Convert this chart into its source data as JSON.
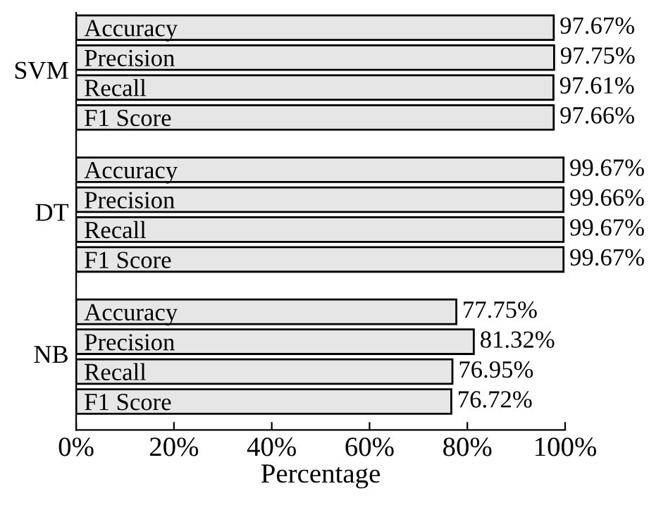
{
  "chart_data": {
    "type": "bar",
    "orientation": "horizontal",
    "xlabel": "Percentage",
    "categories": [
      "Accuracy",
      "Precision",
      "Recall",
      "F1 Score",
      "Accuracy",
      "Precision",
      "Recall",
      "F1 Score",
      "Accuracy",
      "Precision",
      "Recall",
      "F1 Score"
    ],
    "values": [
      97.67,
      97.75,
      97.61,
      97.66,
      99.67,
      99.66,
      99.67,
      99.67,
      77.75,
      81.32,
      76.95,
      76.72
    ],
    "value_labels": [
      "97.67%",
      "97.75%",
      "97.61%",
      "97.66%",
      "99.67%",
      "99.66%",
      "99.67%",
      "99.67%",
      "77.75%",
      "81.32%",
      "76.95%",
      "76.72%"
    ],
    "color": "#e6e6e6",
    "annotations": [
      "SVM",
      "DT",
      "NB"
    ],
    "xlim": [
      0,
      100
    ],
    "xticks": [
      {
        "value": 0,
        "label": "0%"
      },
      {
        "value": 20,
        "label": "20%"
      },
      {
        "value": 40,
        "label": "40%"
      },
      {
        "value": 60,
        "label": "60%"
      },
      {
        "value": 80,
        "label": "80%"
      },
      {
        "value": 100,
        "label": "100%"
      }
    ],
    "grid": false,
    "legend": false
  }
}
